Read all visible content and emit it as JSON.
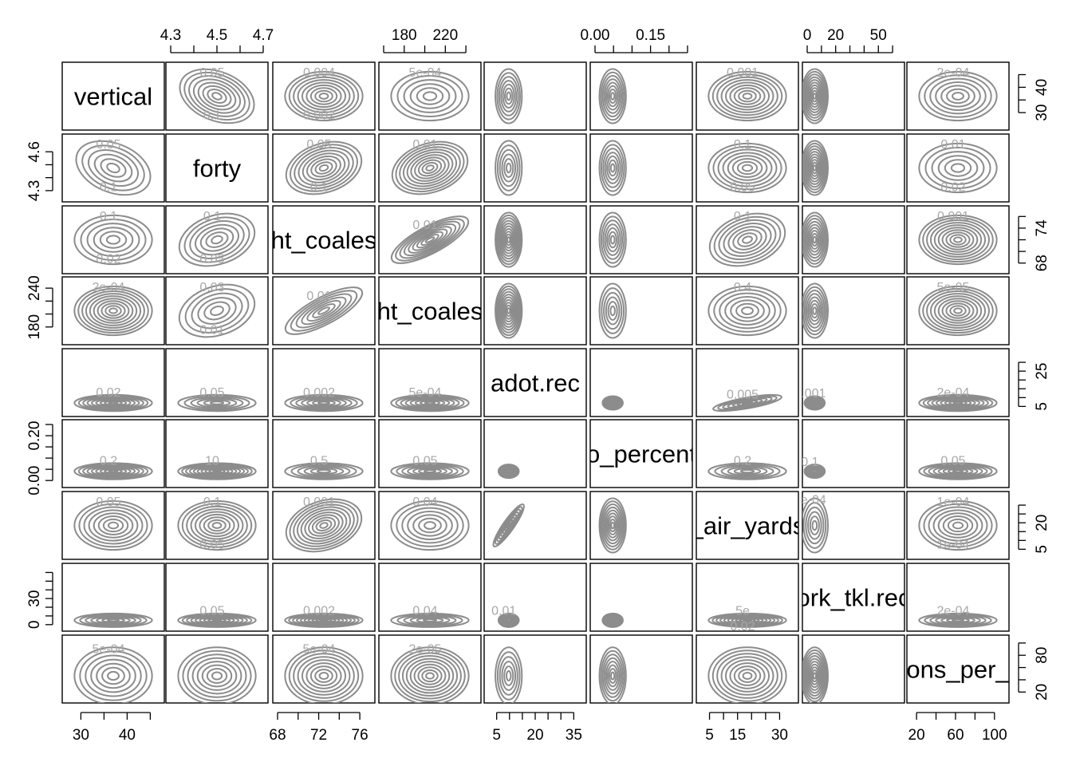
{
  "chart_data": {
    "type": "scatter-matrix-contour",
    "variables": [
      "vertical",
      "forty",
      "ht_coales",
      "ht_coales",
      "adot.rec",
      "o_percent",
      "_air_yards",
      "ork_tkl.rec",
      "ons_per_"
    ],
    "contour_color": "#8c8c8c",
    "axes": [
      {
        "var": 0,
        "side": "bottom",
        "ticks": [
          30,
          40
        ],
        "labels": [
          "30",
          "40"
        ],
        "range": [
          27,
          47
        ],
        "extra_ticks": [
          35,
          45
        ]
      },
      {
        "var": 1,
        "side": "top",
        "ticks": [
          4.3,
          4.5,
          4.7
        ],
        "labels": [
          "4.3",
          "4.5",
          "4.7"
        ],
        "range": [
          4.3,
          4.7
        ],
        "extra_ticks": [
          4.4,
          4.6
        ]
      },
      {
        "var": 2,
        "side": "bottom",
        "ticks": [
          68,
          72,
          76
        ],
        "labels": [
          "68",
          "72",
          "76"
        ],
        "range": [
          68,
          77
        ],
        "extra_ticks": [
          70,
          74
        ]
      },
      {
        "var": 3,
        "side": "top",
        "ticks": [
          180,
          220
        ],
        "labels": [
          "180",
          "220"
        ],
        "range": [
          160,
          250
        ],
        "extra_ticks": [
          160,
          200,
          240
        ]
      },
      {
        "var": 4,
        "side": "bottom",
        "ticks": [
          5,
          20,
          35
        ],
        "labels": [
          "5",
          "20",
          "35"
        ],
        "range": [
          2,
          38
        ],
        "extra_ticks": [
          10,
          15,
          25,
          30
        ]
      },
      {
        "var": 5,
        "side": "top",
        "ticks": [
          0.0,
          0.15
        ],
        "labels": [
          "0.00",
          "0.15"
        ],
        "range": [
          0.0,
          0.25
        ],
        "extra_ticks": [
          0.05,
          0.1,
          0.2,
          0.25
        ]
      },
      {
        "var": 6,
        "side": "bottom",
        "ticks": [
          5,
          15,
          30
        ],
        "labels": [
          "5",
          "15",
          "30"
        ],
        "range": [
          2,
          35
        ],
        "extra_ticks": [
          10,
          20,
          25
        ]
      },
      {
        "var": 7,
        "side": "top",
        "ticks": [
          0,
          20,
          50
        ],
        "labels": [
          "0",
          "20",
          "50"
        ],
        "range": [
          0,
          65
        ],
        "extra_ticks": [
          10,
          30,
          40,
          60
        ]
      },
      {
        "var": 8,
        "side": "bottom",
        "ticks": [
          20,
          60,
          100
        ],
        "labels": [
          "20",
          "60",
          "100"
        ],
        "range": [
          15,
          110
        ],
        "extra_ticks": [
          40,
          80
        ]
      }
    ],
    "row_axes": [
      {
        "var": 0,
        "side": "right",
        "ticks": [
          30,
          40
        ],
        "labels": [
          "30",
          "40"
        ],
        "range": [
          25,
          48
        ],
        "extra_ticks": [
          35,
          45
        ]
      },
      {
        "var": 1,
        "side": "left",
        "ticks": [
          4.3,
          4.6
        ],
        "labels": [
          "4.3",
          "4.6"
        ],
        "range": [
          4.25,
          4.7
        ],
        "extra_ticks": [
          4.4,
          4.5
        ]
      },
      {
        "var": 2,
        "side": "right",
        "ticks": [
          68,
          74
        ],
        "labels": [
          "68",
          "74"
        ],
        "range": [
          67,
          77
        ],
        "extra_ticks": [
          70,
          72,
          76
        ]
      },
      {
        "var": 3,
        "side": "left",
        "ticks": [
          180,
          240
        ],
        "labels": [
          "180",
          "240"
        ],
        "range": [
          160,
          250
        ],
        "extra_ticks": [
          200,
          220
        ]
      },
      {
        "var": 4,
        "side": "right",
        "ticks": [
          5,
          25
        ],
        "labels": [
          "5",
          "25"
        ],
        "range": [
          2,
          35
        ],
        "extra_ticks": [
          10,
          15,
          20,
          30
        ]
      },
      {
        "var": 5,
        "side": "left",
        "ticks": [
          0.0,
          0.2
        ],
        "labels": [
          "0.00",
          "0.20"
        ],
        "range": [
          -0.01,
          0.25
        ],
        "extra_ticks": [
          0.05,
          0.1,
          0.15,
          0.25
        ]
      },
      {
        "var": 6,
        "side": "right",
        "ticks": [
          5,
          20
        ],
        "labels": [
          "5",
          "20"
        ],
        "range": [
          2,
          35
        ],
        "extra_ticks": [
          10,
          15,
          25,
          30
        ]
      },
      {
        "var": 7,
        "side": "left",
        "ticks": [
          0,
          30
        ],
        "labels": [
          "0",
          "30"
        ],
        "range": [
          -2,
          65
        ],
        "extra_ticks": [
          10,
          20,
          40,
          50,
          60
        ]
      },
      {
        "var": 8,
        "side": "right",
        "ticks": [
          20,
          80
        ],
        "labels": [
          "20",
          "80"
        ],
        "range": [
          10,
          105
        ],
        "extra_ticks": [
          40,
          60,
          100
        ]
      }
    ],
    "contour_labels": [
      {
        "row": 0,
        "col": 1,
        "labels": [
          "0.05",
          "0.1"
        ]
      },
      {
        "row": 0,
        "col": 2,
        "labels": [
          "0.004",
          "0.002"
        ]
      },
      {
        "row": 0,
        "col": 3,
        "labels": [
          "5e-04"
        ]
      },
      {
        "row": 0,
        "col": 6,
        "labels": [
          "0.001"
        ]
      },
      {
        "row": 0,
        "col": 8,
        "labels": [
          "2e-04"
        ]
      },
      {
        "row": 1,
        "col": 0,
        "labels": [
          "0.05",
          "0.1"
        ]
      },
      {
        "row": 1,
        "col": 2,
        "labels": [
          "0.05",
          "0.1"
        ]
      },
      {
        "row": 1,
        "col": 3,
        "labels": [
          "0.01"
        ]
      },
      {
        "row": 1,
        "col": 6,
        "labels": [
          "0.1",
          "0.05"
        ]
      },
      {
        "row": 1,
        "col": 8,
        "labels": [
          "0.01",
          "0.02"
        ]
      },
      {
        "row": 2,
        "col": 0,
        "labels": [
          "0.1",
          "0.02"
        ]
      },
      {
        "row": 2,
        "col": 1,
        "labels": [
          "0.1",
          "0.05"
        ]
      },
      {
        "row": 2,
        "col": 3,
        "labels": [
          "0.01"
        ]
      },
      {
        "row": 2,
        "col": 6,
        "labels": [
          "0.1"
        ]
      },
      {
        "row": 2,
        "col": 8,
        "labels": [
          "0.001"
        ]
      },
      {
        "row": 3,
        "col": 0,
        "labels": [
          "2e-04"
        ]
      },
      {
        "row": 3,
        "col": 1,
        "labels": [
          "0.03",
          "0.01"
        ]
      },
      {
        "row": 3,
        "col": 2,
        "labels": [
          "0.01"
        ]
      },
      {
        "row": 3,
        "col": 6,
        "labels": [
          "0.4"
        ]
      },
      {
        "row": 3,
        "col": 8,
        "labels": [
          "5e-05"
        ]
      },
      {
        "row": 4,
        "col": 0,
        "labels": [
          "0.02"
        ]
      },
      {
        "row": 4,
        "col": 1,
        "labels": [
          "0.05"
        ]
      },
      {
        "row": 4,
        "col": 2,
        "labels": [
          "0.002"
        ]
      },
      {
        "row": 4,
        "col": 3,
        "labels": [
          "5e-04"
        ]
      },
      {
        "row": 4,
        "col": 6,
        "labels": [
          "0.005"
        ]
      },
      {
        "row": 4,
        "col": 7,
        "labels": [
          "0.001"
        ]
      },
      {
        "row": 4,
        "col": 8,
        "labels": [
          "2e-04"
        ]
      },
      {
        "row": 5,
        "col": 0,
        "labels": [
          "0.2"
        ]
      },
      {
        "row": 5,
        "col": 1,
        "labels": [
          "10"
        ]
      },
      {
        "row": 5,
        "col": 2,
        "labels": [
          "0.5"
        ]
      },
      {
        "row": 5,
        "col": 3,
        "labels": [
          "0.05"
        ]
      },
      {
        "row": 5,
        "col": 6,
        "labels": [
          "0.2"
        ]
      },
      {
        "row": 5,
        "col": 7,
        "labels": [
          "0.1"
        ]
      },
      {
        "row": 5,
        "col": 8,
        "labels": [
          "0.05"
        ]
      },
      {
        "row": 6,
        "col": 0,
        "labels": [
          "0.05"
        ]
      },
      {
        "row": 6,
        "col": 1,
        "labels": [
          "0.1",
          "0.05"
        ]
      },
      {
        "row": 6,
        "col": 2,
        "labels": [
          "0.001"
        ]
      },
      {
        "row": 6,
        "col": 3,
        "labels": [
          "0.04"
        ]
      },
      {
        "row": 6,
        "col": 7,
        "labels": [
          "8e-04"
        ]
      },
      {
        "row": 6,
        "col": 8,
        "labels": [
          "1e-04",
          "1e-04"
        ]
      },
      {
        "row": 7,
        "col": 1,
        "labels": [
          "0.05"
        ]
      },
      {
        "row": 7,
        "col": 2,
        "labels": [
          "0.002"
        ]
      },
      {
        "row": 7,
        "col": 3,
        "labels": [
          "0.04"
        ]
      },
      {
        "row": 7,
        "col": 4,
        "labels": [
          "0.01"
        ]
      },
      {
        "row": 7,
        "col": 6,
        "labels": [
          "5e",
          "0.02"
        ]
      },
      {
        "row": 7,
        "col": 8,
        "labels": [
          "2e-04"
        ]
      },
      {
        "row": 8,
        "col": 0,
        "labels": [
          "5e-04"
        ]
      },
      {
        "row": 8,
        "col": 2,
        "labels": [
          "5e-04"
        ]
      },
      {
        "row": 8,
        "col": 3,
        "labels": [
          "2e-05"
        ]
      }
    ]
  }
}
